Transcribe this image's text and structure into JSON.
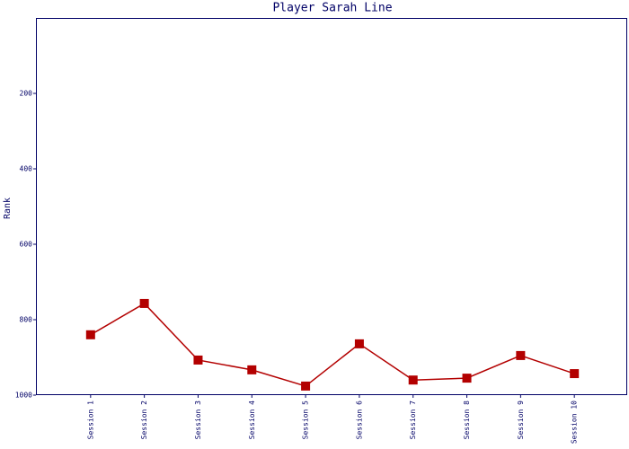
{
  "chart_data": {
    "type": "line",
    "title": "Player Sarah Line",
    "ylabel": "Rank",
    "categories": [
      "Session 1",
      "Session 2",
      "Session 3",
      "Session 4",
      "Session 5",
      "Session 6",
      "Session 7",
      "Session 8",
      "Session 9",
      "Session 10"
    ],
    "series": [
      {
        "name": "Sarah",
        "color": "#b30000",
        "values": [
          840,
          757,
          907,
          933,
          976,
          864,
          960,
          955,
          895,
          943
        ]
      }
    ],
    "ylim": [
      0,
      1000
    ],
    "yticks": [
      200,
      400,
      600,
      800,
      1000
    ],
    "y_inverted": true,
    "grid": false
  }
}
